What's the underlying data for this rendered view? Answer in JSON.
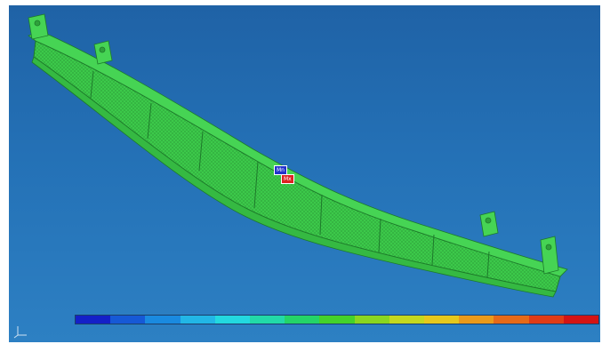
{
  "viewport": {
    "background_top": "#1f62a6",
    "background_bottom": "#2d80c3",
    "model_color": "#3cc94a",
    "model_edge_color": "#1d7a2a"
  },
  "markers": {
    "min_label": "Mn",
    "max_label": "Mx",
    "min_color": "#2233cc",
    "max_color": "#dd2222"
  },
  "legend": {
    "colors": [
      "#1420c8",
      "#1659d6",
      "#1a8ae0",
      "#22b6e6",
      "#23d8e0",
      "#22d9a8",
      "#24d468",
      "#44d22a",
      "#8ad620",
      "#c4d81e",
      "#e6c81c",
      "#ea9a1a",
      "#e66a18",
      "#e03c16",
      "#d41414"
    ],
    "tick_labels": [
      "",
      "",
      "",
      "",
      "",
      "",
      "",
      "",
      "",
      "",
      "",
      "",
      "",
      "",
      "",
      ""
    ]
  },
  "axis_triad": {
    "icon": "coordinate-axes-icon"
  }
}
